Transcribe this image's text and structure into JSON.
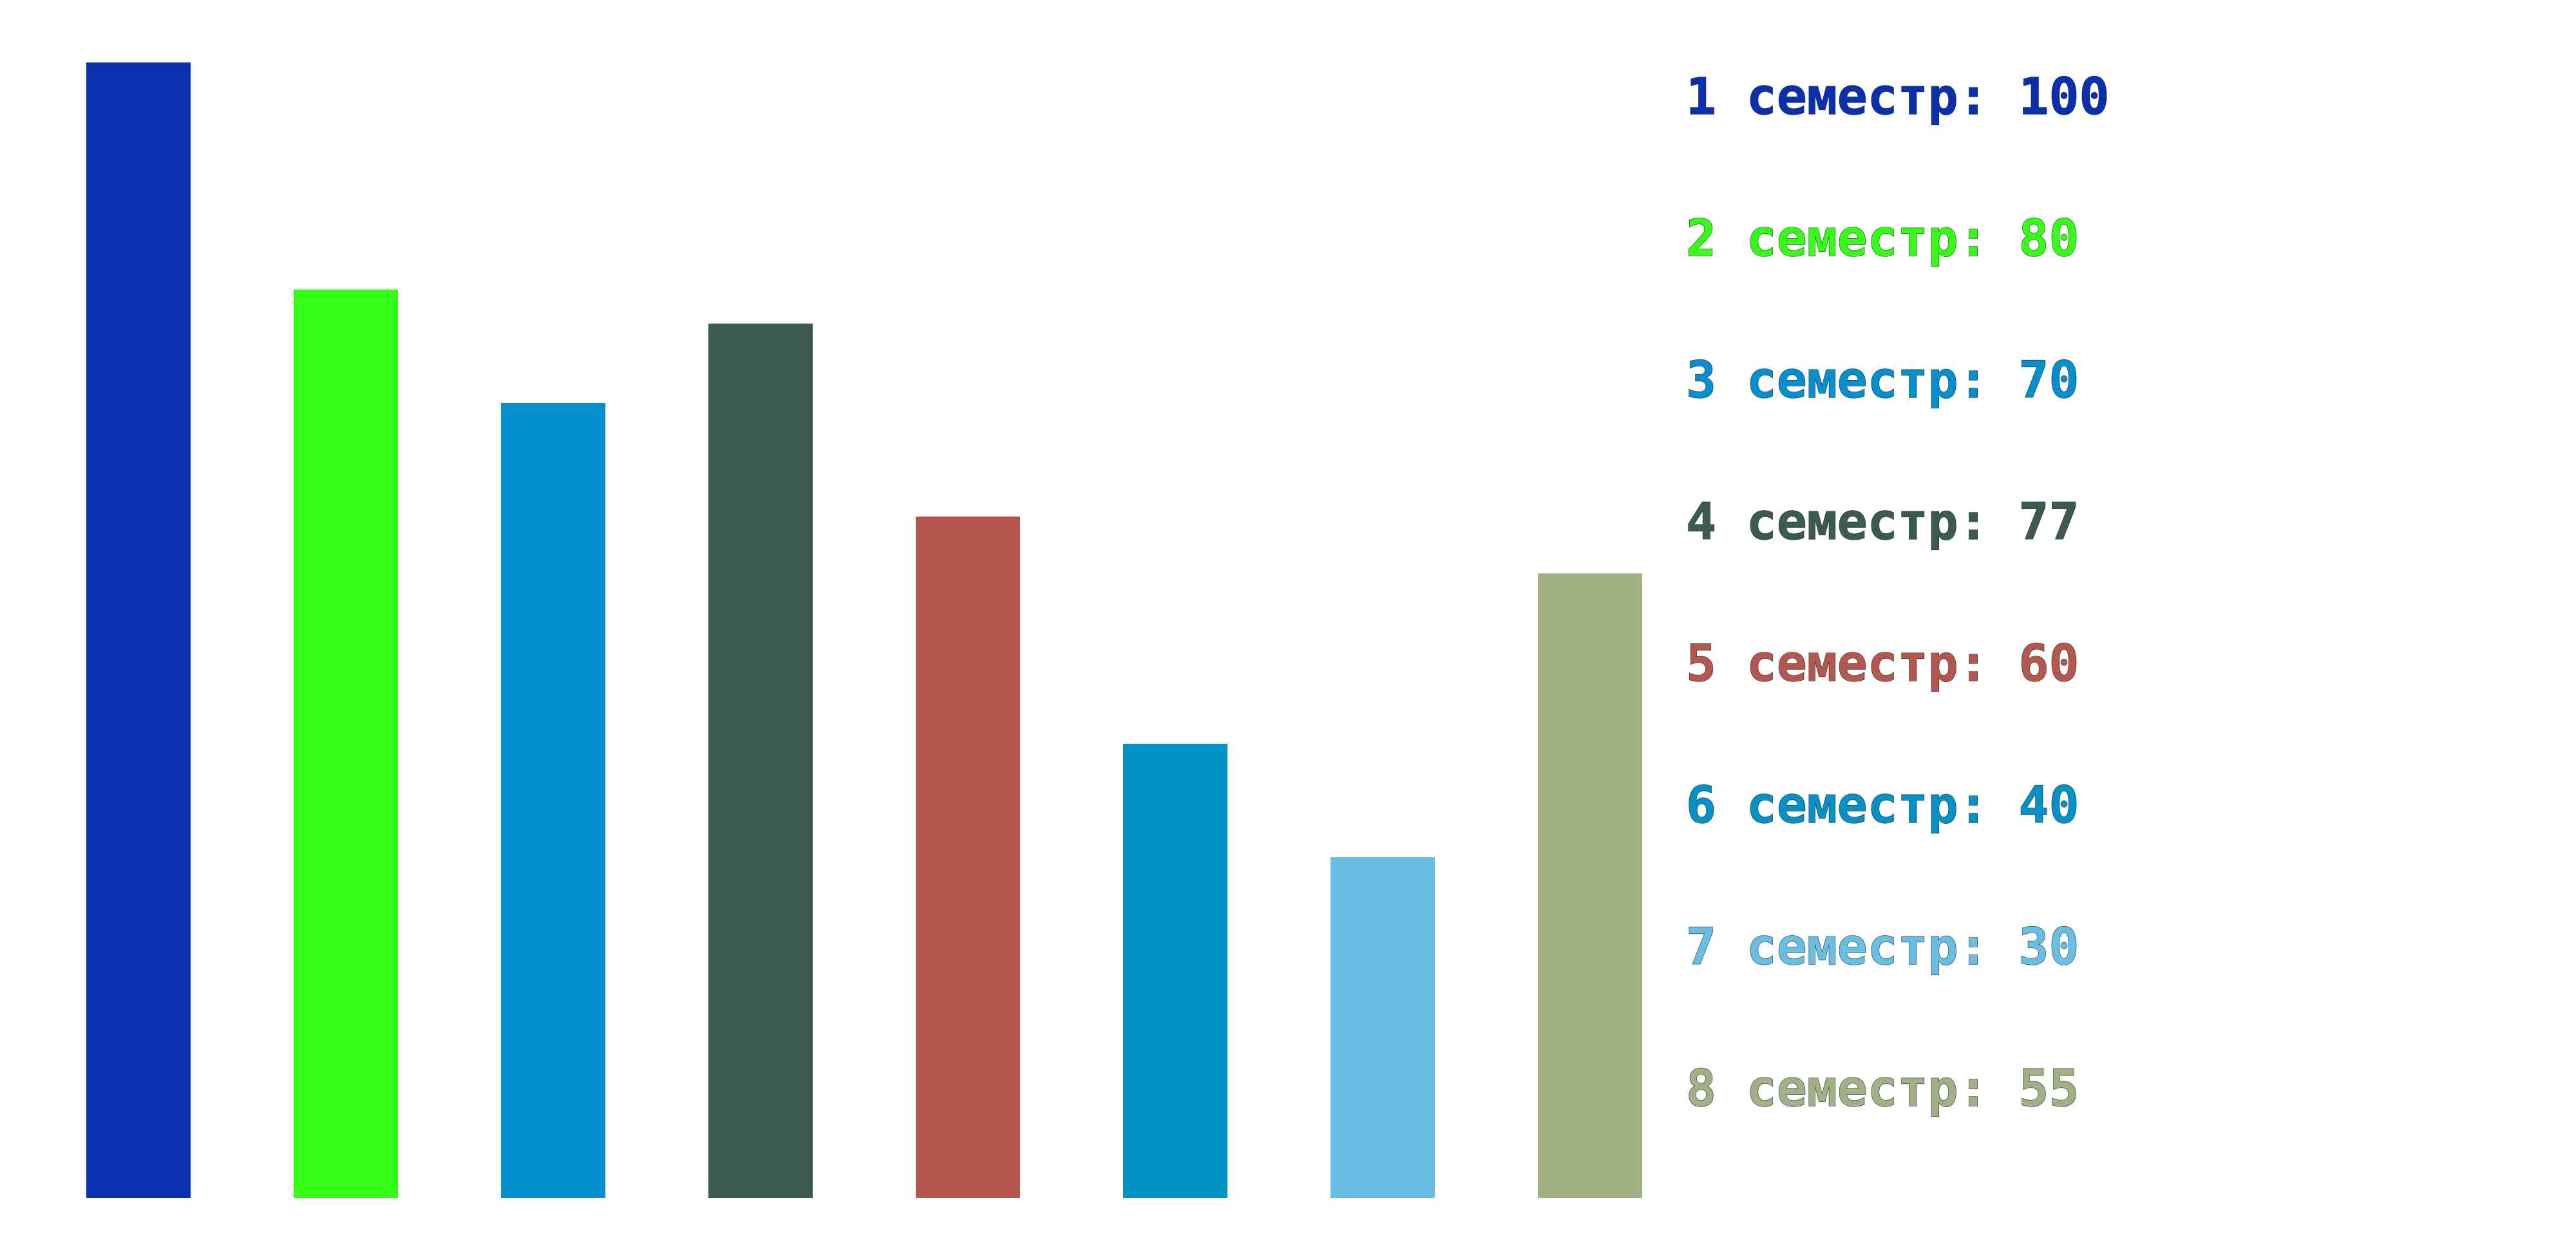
{
  "chart_data": {
    "type": "bar",
    "categories": [
      "1 семестр",
      "2 семестр",
      "3 семестр",
      "4 семестр",
      "5 семестр",
      "6 семестр",
      "7 семестр",
      "8 семестр"
    ],
    "values": [
      100,
      80,
      70,
      77,
      60,
      40,
      30,
      55
    ],
    "colors": [
      "#0a2faf",
      "#34ff14",
      "#068fcf",
      "#3a5a52",
      "#b5574e",
      "#0391c8",
      "#69bfe3",
      "#a2b086"
    ],
    "legend": [
      {
        "label": "1 семестр: 100",
        "color": "#0a2faf"
      },
      {
        "label": "2 семестр: 80",
        "color": "#34ff14"
      },
      {
        "label": "3 семестр: 70",
        "color": "#068fcf"
      },
      {
        "label": "4 семестр: 77",
        "color": "#3a5a52"
      },
      {
        "label": "5 семестр: 60",
        "color": "#b5574e"
      },
      {
        "label": "6 семестр: 40",
        "color": "#0391c8"
      },
      {
        "label": "7 семестр: 30",
        "color": "#69bfe3"
      },
      {
        "label": "8 семестр: 55",
        "color": "#a2b086"
      }
    ],
    "legend_position": "right",
    "ylim": [
      0,
      100
    ],
    "grid": false,
    "title": "",
    "xlabel": "",
    "ylabel": ""
  }
}
